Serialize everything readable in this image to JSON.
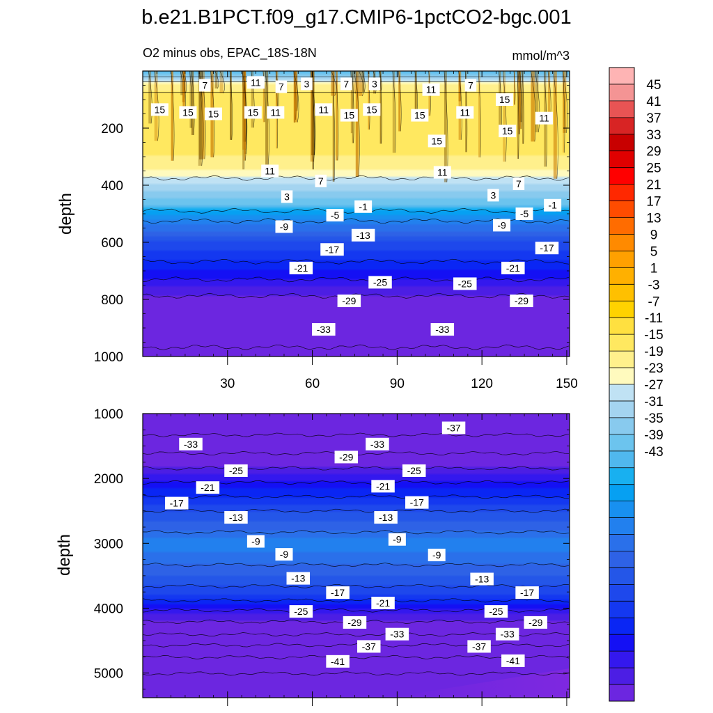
{
  "title": "b.e21.B1PCT.f09_g17.CMIP6-1pctCO2-bgc.001",
  "subtitle_left": "O2 minus obs, EPAC_18S-18N",
  "subtitle_right": "mmol/m^3",
  "chart_data": [
    {
      "type": "contour",
      "panel": "upper",
      "ylabel": "depth",
      "xlabel": "",
      "x_ticks": [
        30,
        60,
        90,
        120,
        150
      ],
      "x_tick_labels": [
        "30",
        "60",
        "90",
        "120",
        "150"
      ],
      "xlim": [
        0,
        151
      ],
      "y_ticks": [
        200,
        400,
        600,
        800,
        1000
      ],
      "y_tick_labels": [
        "200",
        "400",
        "600",
        "800",
        "1000"
      ],
      "ylim": [
        1000,
        0
      ],
      "depth_profile": [
        {
          "depth": 0,
          "value": 1
        },
        {
          "depth": 50,
          "value": 12
        },
        {
          "depth": 120,
          "value": 15
        },
        {
          "depth": 250,
          "value": 15
        },
        {
          "depth": 350,
          "value": 11
        },
        {
          "depth": 420,
          "value": 5
        },
        {
          "depth": 470,
          "value": 1
        },
        {
          "depth": 480,
          "value": -2
        },
        {
          "depth": 540,
          "value": -9
        },
        {
          "depth": 600,
          "value": -15
        },
        {
          "depth": 700,
          "value": -21
        },
        {
          "depth": 800,
          "value": -28
        },
        {
          "depth": 900,
          "value": -33
        },
        {
          "depth": 1000,
          "value": -36
        }
      ],
      "contour_labels": [
        {
          "text": "7",
          "x": 22,
          "depth": 50
        },
        {
          "text": "11",
          "x": 40,
          "depth": 40
        },
        {
          "text": "7",
          "x": 49,
          "depth": 55
        },
        {
          "text": "3",
          "x": 58,
          "depth": 45
        },
        {
          "text": "7",
          "x": 72,
          "depth": 45
        },
        {
          "text": "3",
          "x": 82,
          "depth": 45
        },
        {
          "text": "11",
          "x": 102,
          "depth": 65
        },
        {
          "text": "7",
          "x": 116,
          "depth": 50
        },
        {
          "text": "15",
          "x": 6,
          "depth": 135
        },
        {
          "text": "15",
          "x": 16,
          "depth": 145
        },
        {
          "text": "15",
          "x": 25,
          "depth": 150
        },
        {
          "text": "15",
          "x": 39,
          "depth": 145
        },
        {
          "text": "11",
          "x": 47,
          "depth": 145
        },
        {
          "text": "11",
          "x": 64,
          "depth": 135
        },
        {
          "text": "15",
          "x": 73,
          "depth": 155
        },
        {
          "text": "15",
          "x": 81,
          "depth": 135
        },
        {
          "text": "15",
          "x": 98,
          "depth": 155
        },
        {
          "text": "11",
          "x": 114,
          "depth": 145
        },
        {
          "text": "15",
          "x": 128,
          "depth": 100
        },
        {
          "text": "11",
          "x": 142,
          "depth": 165
        },
        {
          "text": "15",
          "x": 104,
          "depth": 245
        },
        {
          "text": "15",
          "x": 129,
          "depth": 210
        },
        {
          "text": "11",
          "x": 45,
          "depth": 350
        },
        {
          "text": "11",
          "x": 106,
          "depth": 355
        },
        {
          "text": "7",
          "x": 63,
          "depth": 385
        },
        {
          "text": "7",
          "x": 133,
          "depth": 395
        },
        {
          "text": "3",
          "x": 51,
          "depth": 440
        },
        {
          "text": "3",
          "x": 124,
          "depth": 435
        },
        {
          "text": "-1",
          "x": 78,
          "depth": 475
        },
        {
          "text": "-1",
          "x": 145,
          "depth": 470
        },
        {
          "text": "-5",
          "x": 68,
          "depth": 505
        },
        {
          "text": "-5",
          "x": 135,
          "depth": 500
        },
        {
          "text": "-9",
          "x": 50,
          "depth": 545
        },
        {
          "text": "-9",
          "x": 127,
          "depth": 540
        },
        {
          "text": "-13",
          "x": 78,
          "depth": 575
        },
        {
          "text": "-17",
          "x": 67,
          "depth": 625
        },
        {
          "text": "-17",
          "x": 143,
          "depth": 620
        },
        {
          "text": "-21",
          "x": 56,
          "depth": 690
        },
        {
          "text": "-21",
          "x": 131,
          "depth": 690
        },
        {
          "text": "-25",
          "x": 84,
          "depth": 740
        },
        {
          "text": "-25",
          "x": 114,
          "depth": 745
        },
        {
          "text": "-29",
          "x": 73,
          "depth": 805
        },
        {
          "text": "-29",
          "x": 134,
          "depth": 805
        },
        {
          "text": "-33",
          "x": 64,
          "depth": 905
        },
        {
          "text": "-33",
          "x": 106,
          "depth": 905
        }
      ]
    },
    {
      "type": "contour",
      "panel": "lower",
      "ylabel": "depth",
      "xlabel": "",
      "x_ticks": [
        30,
        60,
        90,
        120,
        150
      ],
      "xlim": [
        0,
        151
      ],
      "y_ticks": [
        1000,
        2000,
        3000,
        4000,
        5000
      ],
      "y_tick_labels": [
        "1000",
        "2000",
        "3000",
        "4000",
        "5000"
      ],
      "ylim": [
        5380,
        1000
      ],
      "depth_profile": [
        {
          "depth": 1000,
          "value": -38
        },
        {
          "depth": 1150,
          "value": -37
        },
        {
          "depth": 1500,
          "value": -33
        },
        {
          "depth": 2000,
          "value": -24
        },
        {
          "depth": 2500,
          "value": -15
        },
        {
          "depth": 2900,
          "value": -10
        },
        {
          "depth": 3000,
          "value": -7
        },
        {
          "depth": 3150,
          "value": -9
        },
        {
          "depth": 3500,
          "value": -13
        },
        {
          "depth": 3800,
          "value": -17
        },
        {
          "depth": 4100,
          "value": -25
        },
        {
          "depth": 4400,
          "value": -31
        },
        {
          "depth": 4600,
          "value": -36
        },
        {
          "depth": 4800,
          "value": -40
        },
        {
          "depth": 5000,
          "value": -43
        },
        {
          "depth": 5380,
          "value": -45
        }
      ],
      "contour_labels": [
        {
          "text": "-37",
          "x": 110,
          "depth": 1220
        },
        {
          "text": "-33",
          "x": 17,
          "depth": 1470
        },
        {
          "text": "-33",
          "x": 83,
          "depth": 1470
        },
        {
          "text": "-29",
          "x": 72,
          "depth": 1670
        },
        {
          "text": "-25",
          "x": 33,
          "depth": 1880
        },
        {
          "text": "-25",
          "x": 96,
          "depth": 1880
        },
        {
          "text": "-21",
          "x": 23,
          "depth": 2140
        },
        {
          "text": "-21",
          "x": 85,
          "depth": 2120
        },
        {
          "text": "-17",
          "x": 12,
          "depth": 2380
        },
        {
          "text": "-17",
          "x": 97,
          "depth": 2370
        },
        {
          "text": "-13",
          "x": 33,
          "depth": 2600
        },
        {
          "text": "-13",
          "x": 86,
          "depth": 2600
        },
        {
          "text": "-9",
          "x": 40,
          "depth": 2970
        },
        {
          "text": "-9",
          "x": 90,
          "depth": 2940
        },
        {
          "text": "-9",
          "x": 50,
          "depth": 3170
        },
        {
          "text": "-9",
          "x": 104,
          "depth": 3180
        },
        {
          "text": "-13",
          "x": 55,
          "depth": 3540
        },
        {
          "text": "-13",
          "x": 120,
          "depth": 3550
        },
        {
          "text": "-17",
          "x": 69,
          "depth": 3760
        },
        {
          "text": "-17",
          "x": 136,
          "depth": 3760
        },
        {
          "text": "-21",
          "x": 85,
          "depth": 3920
        },
        {
          "text": "-25",
          "x": 56,
          "depth": 4050
        },
        {
          "text": "-25",
          "x": 125,
          "depth": 4050
        },
        {
          "text": "-29",
          "x": 75,
          "depth": 4220
        },
        {
          "text": "-29",
          "x": 139,
          "depth": 4220
        },
        {
          "text": "-33",
          "x": 90,
          "depth": 4400
        },
        {
          "text": "-33",
          "x": 129,
          "depth": 4400
        },
        {
          "text": "-37",
          "x": 80,
          "depth": 4590
        },
        {
          "text": "-37",
          "x": 119,
          "depth": 4590
        },
        {
          "text": "-41",
          "x": 69,
          "depth": 4820
        },
        {
          "text": "-41",
          "x": 131,
          "depth": 4810
        }
      ]
    }
  ],
  "colorbar": {
    "labels": [
      "45",
      "41",
      "37",
      "33",
      "29",
      "25",
      "21",
      "17",
      "13",
      "9",
      "5",
      "1",
      "-3",
      "-7",
      "-11",
      "-15",
      "-19",
      "-23",
      "-27",
      "-31",
      "-35",
      "-39",
      "-43"
    ],
    "colors": [
      "#feb4b4",
      "#f49494",
      "#e85454",
      "#d82424",
      "#c80000",
      "#e00000",
      "#ff0000",
      "#ff2800",
      "#ff4c00",
      "#ff6c00",
      "#ff8a00",
      "#ffa000",
      "#ffb000",
      "#ffc000",
      "#ffd200",
      "#ffe040",
      "#ffe860",
      "#fff08c",
      "#fffabe",
      "#c0e2f4",
      "#a4d4f0",
      "#88caee",
      "#6cc4ee",
      "#50b8ee",
      "#18b0f0",
      "#06a0f2",
      "#1890f0",
      "#2280ee",
      "#2a70ea",
      "#2e62e6",
      "#2456e8",
      "#1e48ec",
      "#1438f0",
      "#0a26f4",
      "#1410f4",
      "#3418ee",
      "#4c1ee4",
      "#6c26e0"
    ]
  }
}
